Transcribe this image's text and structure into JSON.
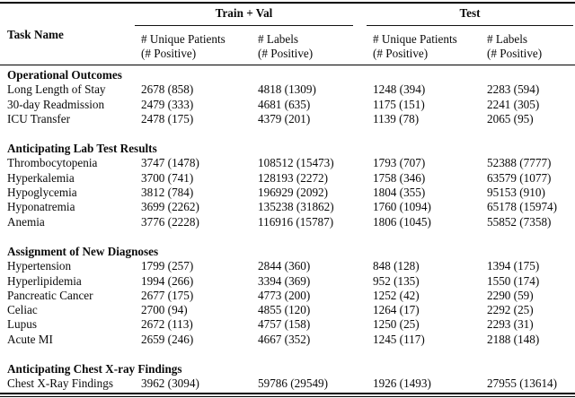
{
  "page": {
    "background": "#ffffff",
    "text_color": "#0a0a0a",
    "rule_color": "#000000"
  },
  "table": {
    "corner_header": "Task Name",
    "groups": [
      {
        "label": "Train + Val"
      },
      {
        "label": "Test"
      }
    ],
    "subcolumns": [
      {
        "line1": "# Unique Patients",
        "line2": "(# Positive)"
      },
      {
        "line1": "# Labels",
        "line2": "(# Positive)"
      },
      {
        "line1": "# Unique Patients",
        "line2": "(# Positive)"
      },
      {
        "line1": "# Labels",
        "line2": "(# Positive)"
      }
    ],
    "sections": [
      {
        "title": "Operational Outcomes",
        "rows": [
          {
            "task": "Long Length of Stay",
            "values": [
              "2678 (858)",
              "4818 (1309)",
              "1248 (394)",
              "2283 (594)"
            ]
          },
          {
            "task": "30-day Readmission",
            "values": [
              "2479 (333)",
              "4681 (635)",
              "1175 (151)",
              "2241 (305)"
            ]
          },
          {
            "task": "ICU Transfer",
            "values": [
              "2478 (175)",
              "4379 (201)",
              "1139 (78)",
              "2065 (95)"
            ]
          }
        ]
      },
      {
        "title": "Anticipating Lab Test Results",
        "rows": [
          {
            "task": "Thrombocytopenia",
            "values": [
              "3747 (1478)",
              "108512 (15473)",
              "1793 (707)",
              "52388 (7777)"
            ]
          },
          {
            "task": "Hyperkalemia",
            "values": [
              "3700 (741)",
              "128193 (2272)",
              "1758 (346)",
              "63579 (1077)"
            ]
          },
          {
            "task": "Hypoglycemia",
            "values": [
              "3812 (784)",
              "196929 (2092)",
              "1804 (355)",
              "95153 (910)"
            ]
          },
          {
            "task": "Hyponatremia",
            "values": [
              "3699 (2262)",
              "135238 (31862)",
              "1760 (1094)",
              "65178 (15974)"
            ]
          },
          {
            "task": "Anemia",
            "values": [
              "3776 (2228)",
              "116916 (15787)",
              "1806 (1045)",
              "55852 (7358)"
            ]
          }
        ]
      },
      {
        "title": "Assignment of New Diagnoses",
        "rows": [
          {
            "task": "Hypertension",
            "values": [
              "1799 (257)",
              "2844 (360)",
              "848 (128)",
              "1394 (175)"
            ]
          },
          {
            "task": "Hyperlipidemia",
            "values": [
              "1994 (266)",
              "3394 (369)",
              "952 (135)",
              "1550 (174)"
            ]
          },
          {
            "task": "Pancreatic Cancer",
            "values": [
              "2677 (175)",
              "4773 (200)",
              "1252 (42)",
              "2290 (59)"
            ]
          },
          {
            "task": "Celiac",
            "values": [
              "2700 (94)",
              "4855 (120)",
              "1264 (17)",
              "2292 (25)"
            ]
          },
          {
            "task": "Lupus",
            "values": [
              "2672 (113)",
              "4757 (158)",
              "1250 (25)",
              "2293 (31)"
            ]
          },
          {
            "task": "Acute MI",
            "values": [
              "2659 (246)",
              "4667 (352)",
              "1245 (117)",
              "2188 (148)"
            ]
          }
        ]
      },
      {
        "title": "Anticipating Chest X-ray Findings",
        "rows": [
          {
            "task": "Chest X-Ray Findings",
            "values": [
              "3962 (3094)",
              "59786 (29549)",
              "1926 (1493)",
              "27955 (13614)"
            ]
          }
        ]
      }
    ]
  }
}
